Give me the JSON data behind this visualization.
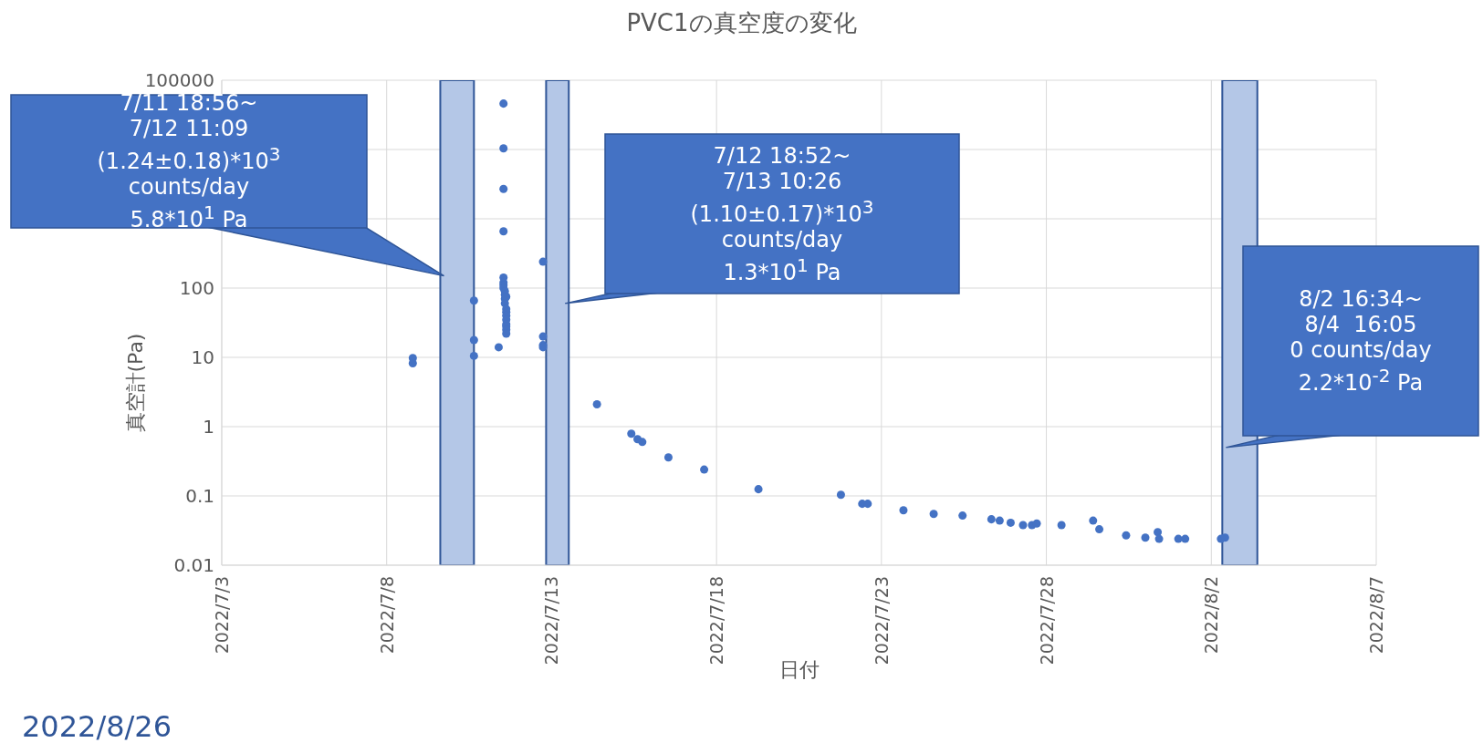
{
  "chart_data": {
    "type": "scatter",
    "title": "PVC1の真空度の変化",
    "xlabel": "日付",
    "ylabel": "真空計(Pa)",
    "annotations": [
      "7/11 18:56~\n7/12 11:09\n(1.24±0.18)*10$^{3}$\ncounts/day\n5.8*10$^{1}$ Pa",
      "7/12 18:52~\n7/13 10:26\n(1.10±0.17)*10$^{3}$\ncounts/day\n1.3*10$^{1}$ Pa",
      "8/2 16:34~\n8/4  16:05\n0 counts/day\n2.2*10$^{-2}$ Pa",
      "2022/8/26"
    ],
    "series": [
      {
        "color": "#4472c4",
        "x": [
          "2022-07-08T19:00",
          "2022-07-08T19:00",
          "2022-07-10T15:30",
          "2022-07-10T15:30",
          "2022-07-10T15:30",
          "2022-07-11T13:00",
          "2022-07-11T13:00",
          "2022-07-11T13:00",
          "2022-07-11T13:00",
          "2022-07-11T13:00",
          "2022-07-11T13:00",
          "2022-07-11T13:00",
          "2022-07-11T13:00",
          "2022-07-11T14:00",
          "2022-07-11T14:00",
          "2022-07-11T14:00",
          "2022-07-11T14:00",
          "2022-07-11T15:00",
          "2022-07-11T15:00",
          "2022-07-11T15:00",
          "2022-07-11T15:00",
          "2022-07-11T15:00",
          "2022-07-11T15:00",
          "2022-07-11T15:00",
          "2022-07-11T15:00",
          "2022-07-11T15:00",
          "2022-07-11T09:30",
          "2022-07-12T17:45",
          "2022-07-12T17:45",
          "2022-07-12T17:45",
          "2022-07-12T17:45",
          "2022-07-14T09:00",
          "2022-07-15T10:00",
          "2022-07-15T14:30",
          "2022-07-15T18:00",
          "2022-07-16T13:00",
          "2022-07-17T15:00",
          "2022-07-19T06:30",
          "2022-07-21T18:30",
          "2022-07-22T10:00",
          "2022-07-22T14:00",
          "2022-07-23T16:00",
          "2022-07-24T14:00",
          "2022-07-25T11:00",
          "2022-07-26T08:00",
          "2022-07-26T14:00",
          "2022-07-26T22:00",
          "2022-07-27T07:00",
          "2022-07-27T13:30",
          "2022-07-27T17:00",
          "2022-07-28T11:00",
          "2022-07-29T10:00",
          "2022-07-29T14:30",
          "2022-07-30T10:00",
          "2022-07-31T00:00",
          "2022-07-31T09:00",
          "2022-07-31T10:00",
          "2022-08-01T00:00",
          "2022-08-01T05:00",
          "2022-08-02T07:00",
          "2022-08-02T10:00"
        ],
        "values": [
          9.8,
          8.2,
          66,
          17.8,
          10.5,
          46000,
          10400,
          2700,
          660,
          142,
          120,
          110,
          100,
          90,
          80,
          70,
          60,
          75,
          50,
          45,
          40,
          35,
          30,
          28,
          25,
          22,
          14,
          240,
          20,
          15,
          14,
          2.1,
          0.79,
          0.66,
          0.6,
          0.36,
          0.24,
          0.125,
          0.104,
          0.077,
          0.077,
          0.062,
          0.055,
          0.052,
          0.046,
          0.044,
          0.041,
          0.038,
          0.038,
          0.04,
          0.038,
          0.044,
          0.033,
          0.027,
          0.025,
          0.03,
          0.024,
          0.024,
          0.024,
          0.024,
          0.025
        ]
      }
    ],
    "bands": [
      {
        "axis": "x",
        "from": "2022-07-09T15:00",
        "to": "2022-07-10T15:30",
        "color": "#b4c7e7"
      },
      {
        "axis": "x",
        "from": "2022-07-12T20:00",
        "to": "2022-07-13T12:30",
        "color": "#b4c7e7"
      },
      {
        "axis": "x",
        "from": "2022-08-02T08:00",
        "to": "2022-08-03T09:30",
        "color": "#b4c7e7"
      }
    ],
    "xlim": [
      "2022-07-03",
      "2022-08-07"
    ],
    "xticks": [
      {
        "value": "2022-07-03",
        "label": "2022/7/3"
      },
      {
        "value": "2022-07-08",
        "label": "2022/7/8"
      },
      {
        "value": "2022-07-13",
        "label": "2022/7/13"
      },
      {
        "value": "2022-07-18",
        "label": "2022/7/18"
      },
      {
        "value": "2022-07-23",
        "label": "2022/7/23"
      },
      {
        "value": "2022-07-28",
        "label": "2022/7/28"
      },
      {
        "value": "2022-08-02",
        "label": "2022/8/2"
      },
      {
        "value": "2022-08-07",
        "label": "2022/8/7"
      }
    ],
    "ylim": [
      0.01,
      100000
    ],
    "yticks": [
      0.01,
      0.1,
      1,
      10,
      100,
      {
        "value": 1000,
        "label": null
      },
      {
        "value": 10000,
        "label": null
      },
      100000
    ],
    "log": true,
    "grid": true,
    "marker": "circle"
  }
}
